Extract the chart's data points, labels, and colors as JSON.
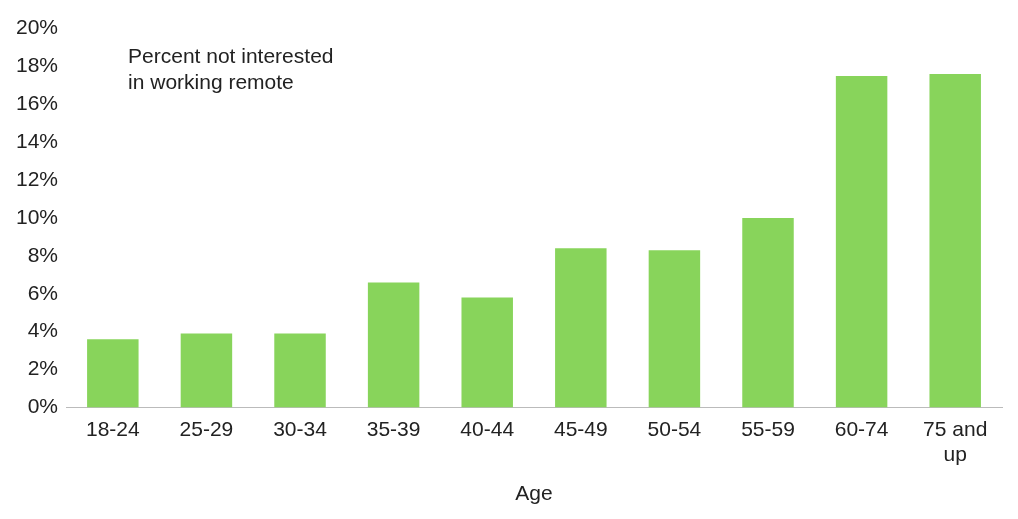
{
  "chart_data": {
    "type": "bar",
    "xlabel": "Age",
    "categories": [
      "18-24",
      "25-29",
      "30-34",
      "35-39",
      "40-44",
      "45-49",
      "50-54",
      "55-59",
      "60-74",
      "75 and up"
    ],
    "values": [
      3.6,
      3.9,
      3.9,
      6.6,
      5.8,
      8.4,
      8.3,
      10.0,
      17.5,
      17.6
    ],
    "color": "#88d45b",
    "ylim": [
      0,
      20
    ],
    "yticks": [
      {
        "value": 0,
        "label": "0%"
      },
      {
        "value": 2,
        "label": "2%"
      },
      {
        "value": 4,
        "label": "4%"
      },
      {
        "value": 6,
        "label": "6%"
      },
      {
        "value": 8,
        "label": "8%"
      },
      {
        "value": 10,
        "label": "10%"
      },
      {
        "value": 12,
        "label": "12%"
      },
      {
        "value": 14,
        "label": "14%"
      },
      {
        "value": 16,
        "label": "16%"
      },
      {
        "value": 18,
        "label": "18%"
      },
      {
        "value": 20,
        "label": "20%"
      }
    ],
    "grid": false,
    "legend": false,
    "annotations": [
      "Percent not interested in working remote"
    ]
  }
}
